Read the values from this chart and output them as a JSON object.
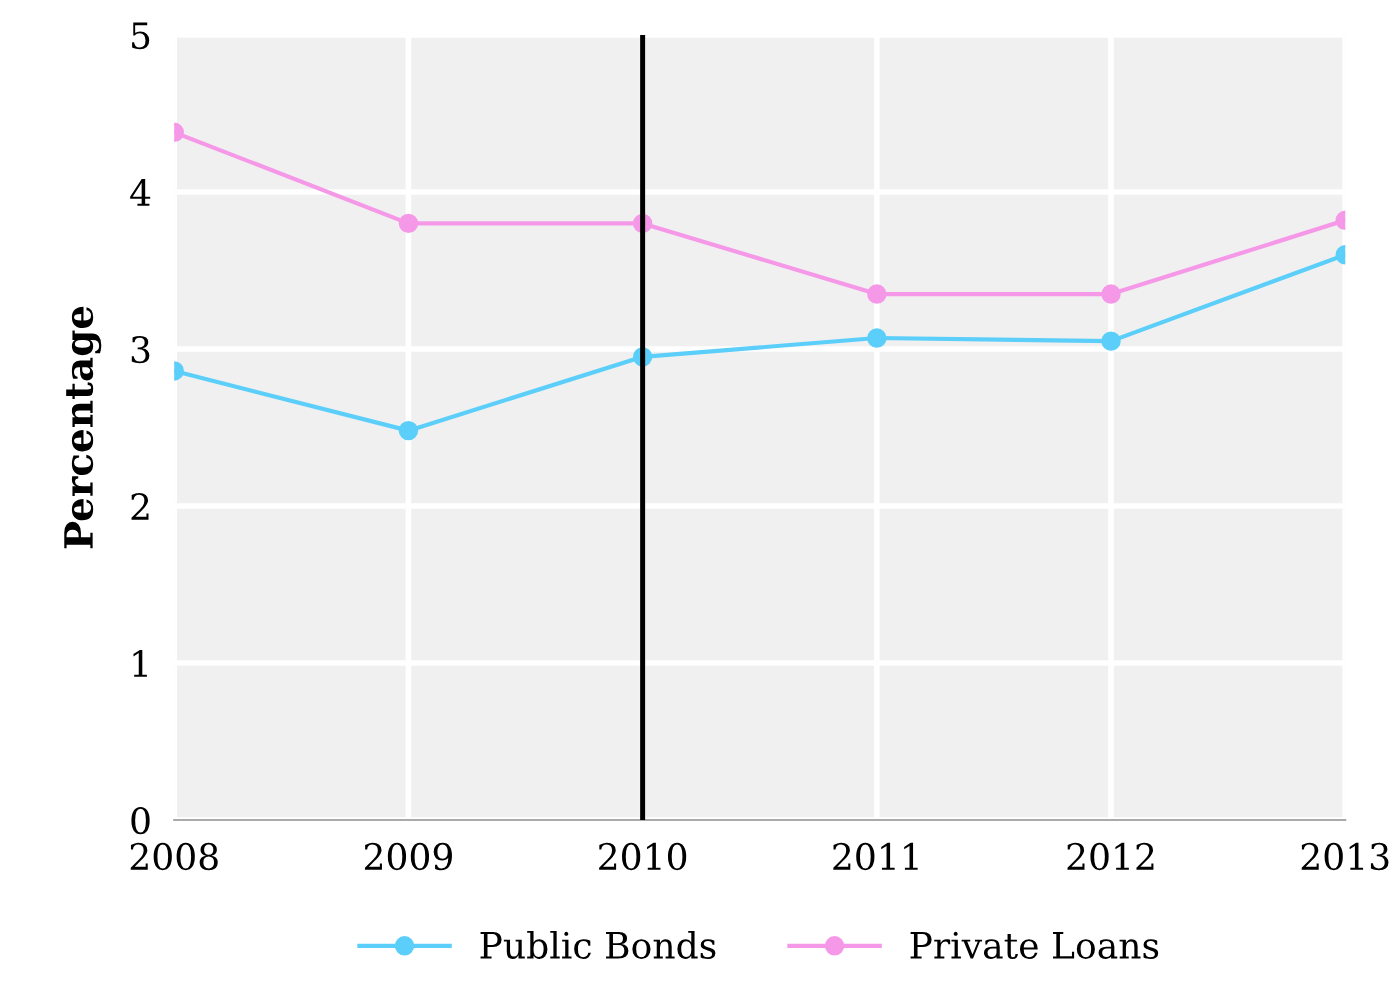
{
  "chart_data": {
    "type": "line",
    "ylabel": "Percentage",
    "x": [
      2008,
      2009,
      2010,
      2011,
      2012,
      2013
    ],
    "series": [
      {
        "name": "Public Bonds",
        "color": "#5bcefa",
        "values": [
          2.86,
          2.48,
          2.95,
          3.07,
          3.05,
          3.6
        ]
      },
      {
        "name": "Private Loans",
        "color": "#f598e8",
        "values": [
          4.38,
          3.8,
          3.8,
          3.35,
          3.35,
          3.82
        ]
      }
    ],
    "xlim": [
      2008,
      2013
    ],
    "xticks": [
      2008,
      2009,
      2010,
      2011,
      2012,
      2013
    ],
    "ylim": [
      0,
      5
    ],
    "yticks": [
      0,
      1,
      2,
      3,
      4,
      5
    ],
    "ref_lines": [
      {
        "axis": "x",
        "value": 2010,
        "color": "#000000"
      }
    ],
    "grid": true,
    "legend": "bottom",
    "marker": "circle",
    "line_style": "solid"
  }
}
